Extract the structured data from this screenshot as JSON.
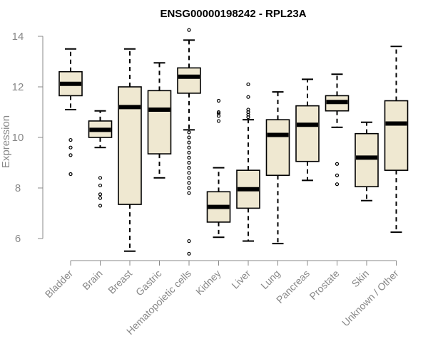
{
  "chart_data": {
    "type": "box",
    "title": "ENSG00000198242 - RPL23A",
    "xlabel": "",
    "ylabel": "Expression",
    "ylim": [
      5.2,
      14.3
    ],
    "yticks": [
      6,
      8,
      10,
      12,
      14
    ],
    "grid": false,
    "categories": [
      "Bladder",
      "Brain",
      "Breast",
      "Gastric",
      "Hematopoietic cells",
      "Kidney",
      "Liver",
      "Lung",
      "Pancreas",
      "Prostate",
      "Skin",
      "Unknown / Other"
    ],
    "boxes": [
      {
        "category": "Bladder",
        "whisker_low": 11.1,
        "q1": 11.65,
        "median": 12.12,
        "q3": 12.6,
        "whisker_high": 13.5,
        "outliers": [
          9.9,
          9.6,
          9.3,
          8.55
        ]
      },
      {
        "category": "Brain",
        "whisker_low": 9.6,
        "q1": 10.0,
        "median": 10.3,
        "q3": 10.65,
        "whisker_high": 11.05,
        "outliers": [
          8.4,
          8.1,
          7.75,
          7.6,
          7.3
        ]
      },
      {
        "category": "Breast",
        "whisker_low": 5.5,
        "q1": 7.35,
        "median": 11.2,
        "q3": 12.0,
        "whisker_high": 13.5,
        "outliers": []
      },
      {
        "category": "Gastric",
        "whisker_low": 8.4,
        "q1": 9.35,
        "median": 11.1,
        "q3": 11.85,
        "whisker_high": 12.95,
        "outliers": []
      },
      {
        "category": "Hematopoietic cells",
        "whisker_low": 10.3,
        "q1": 11.75,
        "median": 12.4,
        "q3": 12.75,
        "whisker_high": 13.85,
        "outliers": [
          14.25,
          10.2,
          10.0,
          9.8,
          9.6,
          9.4,
          9.2,
          9.0,
          8.8,
          8.6,
          8.4,
          8.2,
          8.0,
          7.8,
          5.9,
          5.4
        ]
      },
      {
        "category": "Kidney",
        "whisker_low": 6.05,
        "q1": 6.65,
        "median": 7.25,
        "q3": 7.85,
        "whisker_high": 8.8,
        "outliers": [
          11.45,
          11.0,
          10.95,
          10.85,
          10.65
        ]
      },
      {
        "category": "Liver",
        "whisker_low": 5.9,
        "q1": 7.2,
        "median": 7.95,
        "q3": 8.7,
        "whisker_high": 10.7,
        "outliers": [
          12.1,
          11.6,
          11.1,
          11.0,
          10.9,
          10.8
        ]
      },
      {
        "category": "Lung",
        "whisker_low": 5.8,
        "q1": 8.5,
        "median": 10.1,
        "q3": 10.7,
        "whisker_high": 11.8,
        "outliers": []
      },
      {
        "category": "Pancreas",
        "whisker_low": 8.3,
        "q1": 9.05,
        "median": 10.5,
        "q3": 11.25,
        "whisker_high": 12.3,
        "outliers": []
      },
      {
        "category": "Prostate",
        "whisker_low": 10.4,
        "q1": 11.05,
        "median": 11.4,
        "q3": 11.65,
        "whisker_high": 12.5,
        "outliers": [
          8.95,
          8.5,
          8.15
        ]
      },
      {
        "category": "Skin",
        "whisker_low": 7.5,
        "q1": 8.05,
        "median": 9.2,
        "q3": 10.15,
        "whisker_high": 10.6,
        "outliers": []
      },
      {
        "category": "Unknown / Other",
        "whisker_low": 6.25,
        "q1": 8.7,
        "median": 10.55,
        "q3": 11.45,
        "whisker_high": 13.6,
        "outliers": []
      }
    ],
    "colors": {
      "box_fill": "#efe8d1",
      "stroke": "#000000",
      "axis": "#888888"
    }
  }
}
